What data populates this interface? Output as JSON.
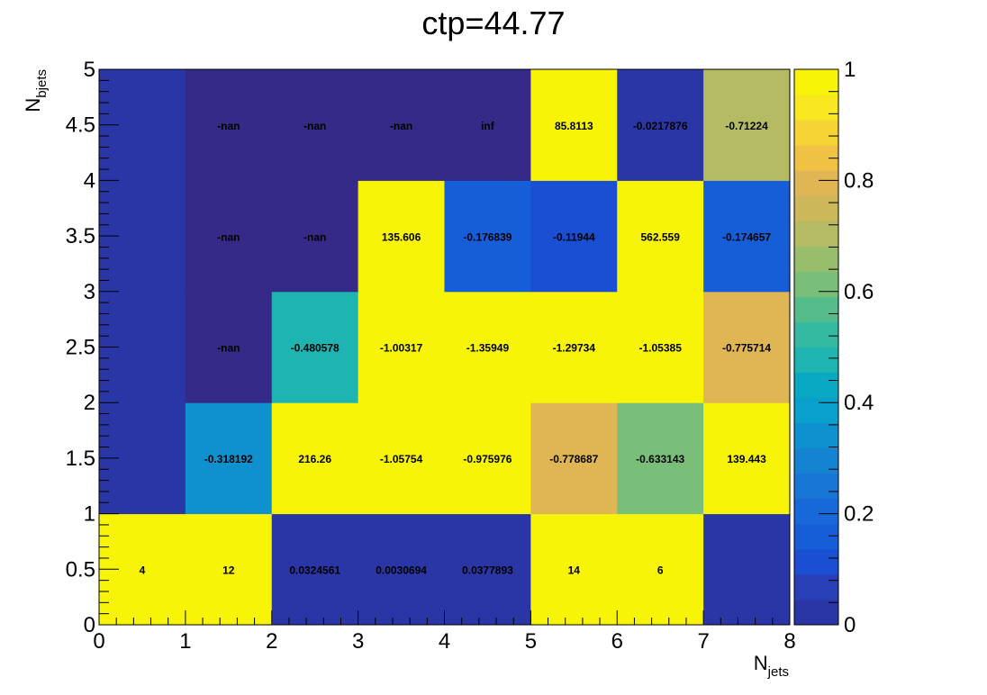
{
  "chart_data": {
    "type": "heatmap",
    "title": "ctp=44.77",
    "xlabel": {
      "main": "N",
      "sub": "jets"
    },
    "ylabel": {
      "main": "N",
      "sub": "bjets"
    },
    "xlim": [
      0,
      8
    ],
    "ylim": [
      0,
      5
    ],
    "x_bins": [
      0,
      1,
      2,
      3,
      4,
      5,
      6,
      7,
      8
    ],
    "y_bins": [
      0,
      1,
      2,
      3,
      4,
      5
    ],
    "x_tick_labels": [
      "0",
      "1",
      "2",
      "3",
      "4",
      "5",
      "6",
      "7",
      "8"
    ],
    "y_tick_labels": [
      "0",
      "0.5",
      "1",
      "1.5",
      "2",
      "2.5",
      "3",
      "3.5",
      "4",
      "4.5",
      "5"
    ],
    "colorbar": {
      "min": 0,
      "max": 1,
      "tick_labels": [
        "0",
        "0.2",
        "0.4",
        "0.6",
        "0.8",
        "1"
      ],
      "palette": [
        "#2a36a5",
        "#283fb8",
        "#1a4ed3",
        "#155ed8",
        "#1768d8",
        "#1877d6",
        "#1484d2",
        "#0f91cf",
        "#0aa0cc",
        "#0aa9c3",
        "#1db4b2",
        "#33baa0",
        "#55bd8b",
        "#79be79",
        "#99be6b",
        "#b5bb62",
        "#ccb75b",
        "#e0b654",
        "#f0c244",
        "#f7d435",
        "#f9e81f",
        "#f7f408"
      ]
    },
    "cells": [
      [
        {
          "label": "4",
          "value": 1
        },
        {
          "label": "12",
          "value": 1
        },
        {
          "label": "0.0324561",
          "value": 0.0324561
        },
        {
          "label": "0.0030694",
          "value": 0.0030694
        },
        {
          "label": "0.0377893",
          "value": 0.0377893
        },
        {
          "label": "14",
          "value": 1
        },
        {
          "label": "6",
          "value": 1
        },
        {
          "label": "",
          "value": 0
        }
      ],
      [
        {
          "label": "",
          "value": 0
        },
        {
          "label": "-0.318192",
          "value": 0.318192
        },
        {
          "label": "216.26",
          "value": 1
        },
        {
          "label": "-1.05754",
          "value": 1
        },
        {
          "label": "-0.975976",
          "value": 0.975976
        },
        {
          "label": "-0.778687",
          "value": 0.778687
        },
        {
          "label": "-0.633143",
          "value": 0.633143
        },
        {
          "label": "139.443",
          "value": 1
        }
      ],
      [
        {
          "label": "",
          "value": 0
        },
        {
          "label": "-nan",
          "value": null
        },
        {
          "label": "-0.480578",
          "value": 0.480578
        },
        {
          "label": "-1.00317",
          "value": 1
        },
        {
          "label": "-1.35949",
          "value": 1
        },
        {
          "label": "-1.29734",
          "value": 1
        },
        {
          "label": "-1.05385",
          "value": 1
        },
        {
          "label": "-0.775714",
          "value": 0.775714
        }
      ],
      [
        {
          "label": "",
          "value": 0
        },
        {
          "label": "-nan",
          "value": null
        },
        {
          "label": "-nan",
          "value": null
        },
        {
          "label": "135.606",
          "value": 1
        },
        {
          "label": "-0.176839",
          "value": 0.176839
        },
        {
          "label": "-0.11944",
          "value": 0.11944
        },
        {
          "label": "562.559",
          "value": 1
        },
        {
          "label": "-0.174657",
          "value": 0.174657
        }
      ],
      [
        {
          "label": "",
          "value": 0
        },
        {
          "label": "-nan",
          "value": null
        },
        {
          "label": "-nan",
          "value": null
        },
        {
          "label": "-nan",
          "value": null
        },
        {
          "label": "inf",
          "value": null
        },
        {
          "label": "85.8113",
          "value": 1
        },
        {
          "label": "-0.0217876",
          "value": 0.0217876
        },
        {
          "label": "-0.71224",
          "value": 0.71224
        }
      ]
    ],
    "nan_color": "#352a87"
  }
}
